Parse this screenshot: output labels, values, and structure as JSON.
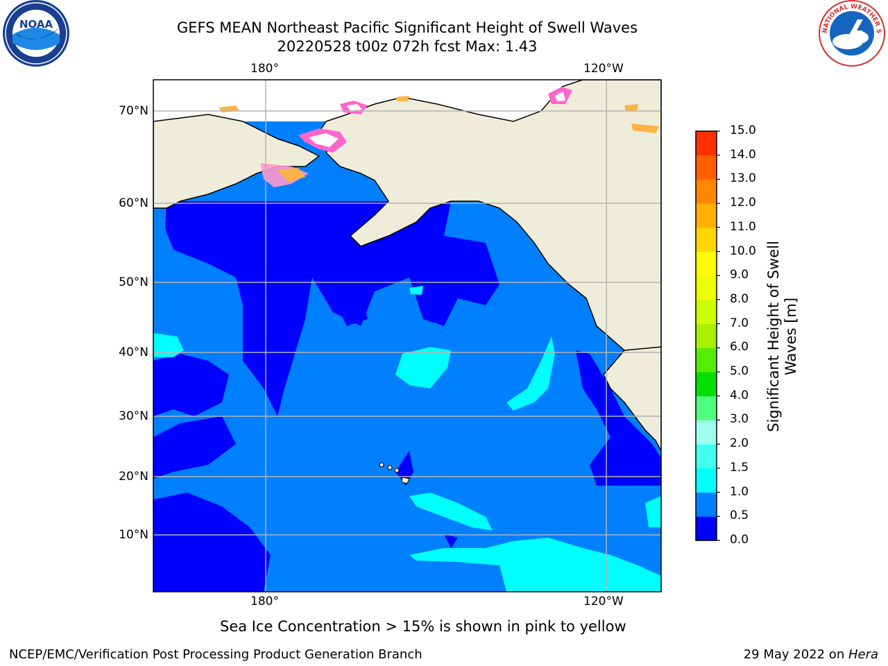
{
  "title": {
    "line1": "GEFS MEAN Northeast Pacific Significant Height of Swell Waves",
    "line2": "20220528 t00z 072h fcst    Max: 1.43"
  },
  "logos": {
    "noaa_text": "NOAA",
    "nws_text": "NATIONAL WEATHER SERVICE",
    "noaa_icon": "noaa-logo",
    "nws_icon": "nws-logo"
  },
  "map": {
    "lon_labels": [
      "180°",
      "120°W"
    ],
    "lat_labels": [
      "70°N",
      "60°N",
      "50°N",
      "40°N",
      "30°N",
      "20°N",
      "10°N"
    ],
    "colors": {
      "land": "#efedd9",
      "lowest_band": "#0000ff",
      "low_band": "#0080ff",
      "mid_band": "#00ffff",
      "ice_pink": "#ff66cc",
      "ice_orange": "#ffb347"
    }
  },
  "colorbar": {
    "label_line1": "Significant Height of Swell",
    "label_line2": "Waves [m]",
    "ticks": [
      "0.0",
      "0.5",
      "1.0",
      "1.5",
      "2.0",
      "3.0",
      "4.0",
      "5.0",
      "6.0",
      "7.0",
      "8.0",
      "9.0",
      "10.0",
      "11.0",
      "12.0",
      "13.0",
      "14.0",
      "15.0"
    ],
    "colors": [
      "#0000ff",
      "#0080ff",
      "#00ffff",
      "#40ffee",
      "#a0fff0",
      "#50ff80",
      "#00e000",
      "#55ee00",
      "#aaee00",
      "#ccff00",
      "#eeff00",
      "#ffff00",
      "#ffd700",
      "#ffb000",
      "#ff8800",
      "#ff6000",
      "#ff3000",
      "#ff0000"
    ]
  },
  "footnote": "Sea Ice Concentration > 15% is shown in pink to yellow",
  "footer": {
    "left": "NCEP/EMC/Verification Post Processing Product Generation Branch",
    "right_prefix": "29 May 2022 on ",
    "right_italic": "Hera"
  }
}
